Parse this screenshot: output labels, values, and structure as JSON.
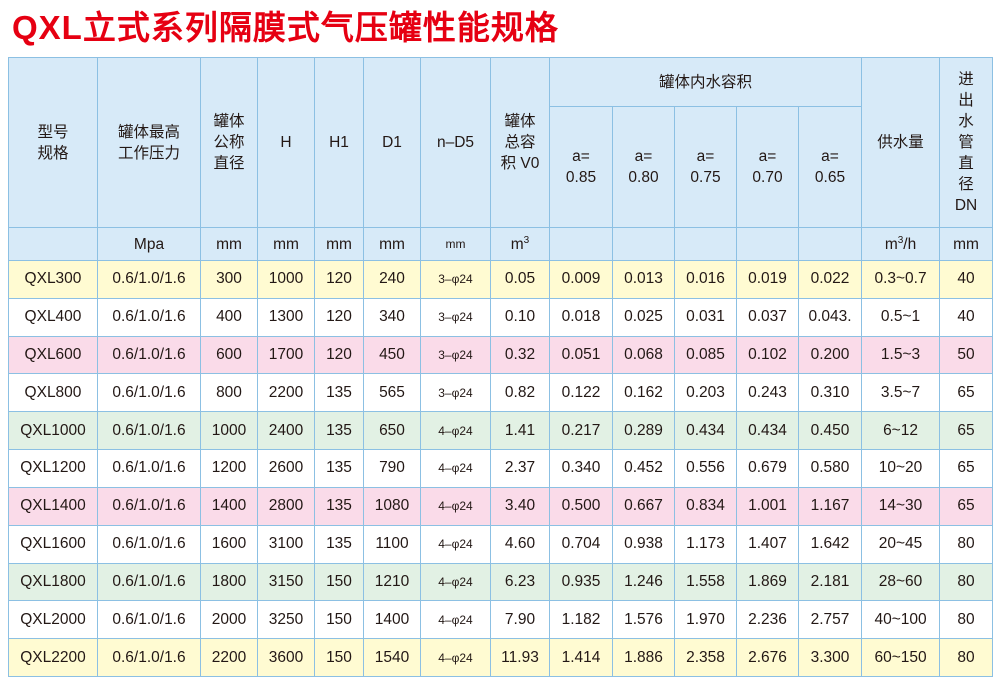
{
  "title": "QXL立式系列隔膜式气压罐性能规格",
  "headers": {
    "model": "型号\n规格",
    "pressure": "罐体最高\n工作压力",
    "diameter": "罐体\n公称\n直径",
    "h": "H",
    "h1": "H1",
    "d1": "D1",
    "nd5": "n–D5",
    "volume": "罐体\n总容\n积 V0",
    "water_group": "罐体内水容积",
    "a_values": [
      "a=\n0.85",
      "a=\n0.80",
      "a=\n0.75",
      "a=\n0.70",
      "a=\n0.65"
    ],
    "supply": "供水量",
    "dn": "进\n出\n水\n管\n直\n径\nDN"
  },
  "units": {
    "pressure": "Mpa",
    "diameter": "mm",
    "h": "mm",
    "h1": "mm",
    "d1": "mm",
    "nd5": "mm",
    "volume_base": "m",
    "volume_sup": "3",
    "supply_base": "m",
    "supply_sup": "3",
    "supply_rest": "/h",
    "dn": "mm"
  },
  "rows": [
    [
      "QXL300",
      "0.6/1.0/1.6",
      "300",
      "1000",
      "120",
      "240",
      "3–φ24",
      "0.05",
      "0.009",
      "0.013",
      "0.016",
      "0.019",
      "0.022",
      "0.3~0.7",
      "40"
    ],
    [
      "QXL400",
      "0.6/1.0/1.6",
      "400",
      "1300",
      "120",
      "340",
      "3–φ24",
      "0.10",
      "0.018",
      "0.025",
      "0.031",
      "0.037",
      "0.043.",
      "0.5~1",
      "40"
    ],
    [
      "QXL600",
      "0.6/1.0/1.6",
      "600",
      "1700",
      "120",
      "450",
      "3–φ24",
      "0.32",
      "0.051",
      "0.068",
      "0.085",
      "0.102",
      "0.200",
      "1.5~3",
      "50"
    ],
    [
      "QXL800",
      "0.6/1.0/1.6",
      "800",
      "2200",
      "135",
      "565",
      "3–φ24",
      "0.82",
      "0.122",
      "0.162",
      "0.203",
      "0.243",
      "0.310",
      "3.5~7",
      "65"
    ],
    [
      "QXL1000",
      "0.6/1.0/1.6",
      "1000",
      "2400",
      "135",
      "650",
      "4–φ24",
      "1.41",
      "0.217",
      "0.289",
      "0.434",
      "0.434",
      "0.450",
      "6~12",
      "65"
    ],
    [
      "QXL1200",
      "0.6/1.0/1.6",
      "1200",
      "2600",
      "135",
      "790",
      "4–φ24",
      "2.37",
      "0.340",
      "0.452",
      "0.556",
      "0.679",
      "0.580",
      "10~20",
      "65"
    ],
    [
      "QXL1400",
      "0.6/1.0/1.6",
      "1400",
      "2800",
      "135",
      "1080",
      "4–φ24",
      "3.40",
      "0.500",
      "0.667",
      "0.834",
      "1.001",
      "1.167",
      "14~30",
      "65"
    ],
    [
      "QXL1600",
      "0.6/1.0/1.6",
      "1600",
      "3100",
      "135",
      "1100",
      "4–φ24",
      "4.60",
      "0.704",
      "0.938",
      "1.173",
      "1.407",
      "1.642",
      "20~45",
      "80"
    ],
    [
      "QXL1800",
      "0.6/1.0/1.6",
      "1800",
      "3150",
      "150",
      "1210",
      "4–φ24",
      "6.23",
      "0.935",
      "1.246",
      "1.558",
      "1.869",
      "2.181",
      "28~60",
      "80"
    ],
    [
      "QXL2000",
      "0.6/1.0/1.6",
      "2000",
      "3250",
      "150",
      "1400",
      "4–φ24",
      "7.90",
      "1.182",
      "1.576",
      "1.970",
      "2.236",
      "2.757",
      "40~100",
      "80"
    ],
    [
      "QXL2200",
      "0.6/1.0/1.6",
      "2200",
      "3600",
      "150",
      "1540",
      "4–φ24",
      "11.93",
      "1.414",
      "1.886",
      "2.358",
      "2.676",
      "3.300",
      "60~150",
      "80"
    ]
  ],
  "row_colors": [
    "#fffbd2",
    "#ffffff",
    "#fadbe9",
    "#ffffff",
    "#e2f1e4",
    "#ffffff",
    "#fadbe9",
    "#ffffff",
    "#e2f1e4",
    "#ffffff",
    "#fffbd2"
  ]
}
